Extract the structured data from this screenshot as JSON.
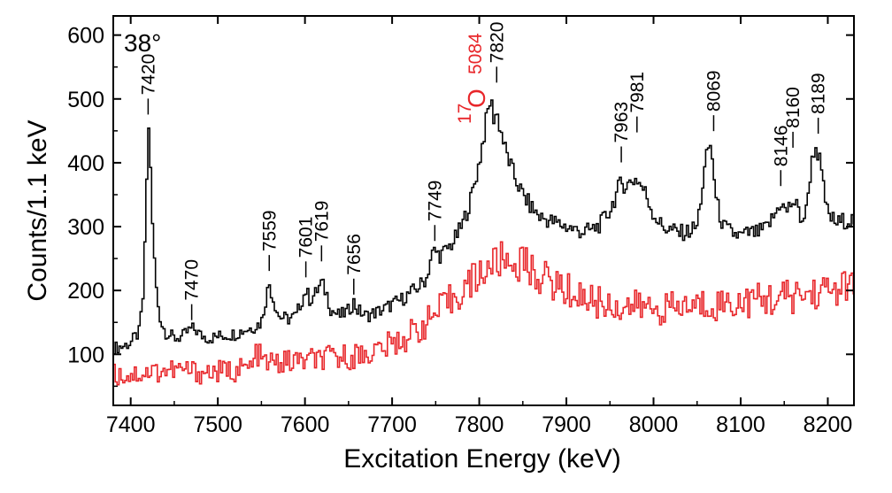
{
  "chart_data": {
    "type": "line",
    "title": "",
    "xlabel": "Excitation Energy (keV)",
    "ylabel": "Counts/1.1 keV",
    "xlim": [
      7380,
      8230
    ],
    "ylim": [
      20,
      630
    ],
    "xticks": [
      7400,
      7500,
      7600,
      7700,
      7800,
      7900,
      8000,
      8100,
      8200
    ],
    "yticks": [
      100,
      200,
      300,
      400,
      500,
      600
    ],
    "grid": false,
    "annotations": {
      "angle": "38°",
      "contaminant_mass": "17",
      "contaminant_element": "O",
      "contaminant_energy": "5084"
    },
    "peak_labels": [
      {
        "text": "7420",
        "x": 7420,
        "y": 470
      },
      {
        "text": "7470",
        "x": 7470,
        "y": 148
      },
      {
        "text": "7559",
        "x": 7559,
        "y": 225
      },
      {
        "text": "7601",
        "x": 7601,
        "y": 215
      },
      {
        "text": "7619",
        "x": 7619,
        "y": 240
      },
      {
        "text": "7656",
        "x": 7656,
        "y": 188
      },
      {
        "text": "7749",
        "x": 7749,
        "y": 272
      },
      {
        "text": "7820",
        "x": 7820,
        "y": 520
      },
      {
        "text": "7963",
        "x": 7963,
        "y": 395
      },
      {
        "text": "7981",
        "x": 7981,
        "y": 442
      },
      {
        "text": "8069",
        "x": 8069,
        "y": 444
      },
      {
        "text": "8146",
        "x": 8146,
        "y": 358
      },
      {
        "text": "8160",
        "x": 8160,
        "y": 418
      },
      {
        "text": "8189",
        "x": 8189,
        "y": 440
      }
    ],
    "series": [
      {
        "color": "#000000",
        "points": [
          [
            7380,
            110
          ],
          [
            7390,
            112
          ],
          [
            7400,
            118
          ],
          [
            7410,
            135
          ],
          [
            7415,
            200
          ],
          [
            7418,
            350
          ],
          [
            7420,
            455
          ],
          [
            7422,
            440
          ],
          [
            7425,
            300
          ],
          [
            7430,
            190
          ],
          [
            7435,
            150
          ],
          [
            7440,
            135
          ],
          [
            7450,
            125
          ],
          [
            7460,
            128
          ],
          [
            7465,
            135
          ],
          [
            7470,
            140
          ],
          [
            7475,
            138
          ],
          [
            7480,
            130
          ],
          [
            7490,
            125
          ],
          [
            7500,
            128
          ],
          [
            7510,
            130
          ],
          [
            7520,
            132
          ],
          [
            7530,
            138
          ],
          [
            7540,
            142
          ],
          [
            7550,
            150
          ],
          [
            7555,
            185
          ],
          [
            7559,
            212
          ],
          [
            7563,
            190
          ],
          [
            7570,
            160
          ],
          [
            7580,
            155
          ],
          [
            7590,
            160
          ],
          [
            7595,
            180
          ],
          [
            7601,
            200
          ],
          [
            7606,
            185
          ],
          [
            7612,
            195
          ],
          [
            7619,
            212
          ],
          [
            7625,
            195
          ],
          [
            7630,
            170
          ],
          [
            7640,
            160
          ],
          [
            7650,
            168
          ],
          [
            7656,
            182
          ],
          [
            7660,
            170
          ],
          [
            7670,
            160
          ],
          [
            7680,
            165
          ],
          [
            7690,
            170
          ],
          [
            7700,
            178
          ],
          [
            7710,
            185
          ],
          [
            7720,
            195
          ],
          [
            7730,
            205
          ],
          [
            7740,
            220
          ],
          [
            7745,
            255
          ],
          [
            7749,
            262
          ],
          [
            7755,
            255
          ],
          [
            7760,
            260
          ],
          [
            7770,
            275
          ],
          [
            7780,
            300
          ],
          [
            7790,
            340
          ],
          [
            7800,
            400
          ],
          [
            7805,
            440
          ],
          [
            7810,
            480
          ],
          [
            7813,
            500
          ],
          [
            7817,
            470
          ],
          [
            7820,
            480
          ],
          [
            7825,
            450
          ],
          [
            7830,
            420
          ],
          [
            7840,
            380
          ],
          [
            7850,
            350
          ],
          [
            7860,
            330
          ],
          [
            7870,
            315
          ],
          [
            7880,
            310
          ],
          [
            7890,
            305
          ],
          [
            7900,
            300
          ],
          [
            7910,
            295
          ],
          [
            7920,
            292
          ],
          [
            7930,
            295
          ],
          [
            7940,
            305
          ],
          [
            7950,
            325
          ],
          [
            7960,
            360
          ],
          [
            7963,
            368
          ],
          [
            7970,
            365
          ],
          [
            7975,
            372
          ],
          [
            7981,
            375
          ],
          [
            7990,
            355
          ],
          [
            8000,
            320
          ],
          [
            8010,
            300
          ],
          [
            8020,
            295
          ],
          [
            8030,
            290
          ],
          [
            8040,
            292
          ],
          [
            8050,
            300
          ],
          [
            8055,
            350
          ],
          [
            8060,
            400
          ],
          [
            8064,
            432
          ],
          [
            8068,
            405
          ],
          [
            8072,
            340
          ],
          [
            8080,
            300
          ],
          [
            8090,
            290
          ],
          [
            8100,
            285
          ],
          [
            8110,
            290
          ],
          [
            8120,
            290
          ],
          [
            8130,
            298
          ],
          [
            8140,
            320
          ],
          [
            8146,
            340
          ],
          [
            8152,
            322
          ],
          [
            8160,
            340
          ],
          [
            8165,
            330
          ],
          [
            8170,
            310
          ],
          [
            8175,
            320
          ],
          [
            8180,
            385
          ],
          [
            8185,
            428
          ],
          [
            8190,
            410
          ],
          [
            8195,
            360
          ],
          [
            8200,
            320
          ],
          [
            8210,
            305
          ],
          [
            8220,
            310
          ],
          [
            8230,
            310
          ]
        ]
      },
      {
        "color": "#e8262a",
        "points": [
          [
            7380,
            68
          ],
          [
            7400,
            68
          ],
          [
            7420,
            72
          ],
          [
            7440,
            75
          ],
          [
            7460,
            75
          ],
          [
            7480,
            72
          ],
          [
            7500,
            72
          ],
          [
            7520,
            75
          ],
          [
            7540,
            80
          ],
          [
            7545,
            105
          ],
          [
            7550,
            90
          ],
          [
            7560,
            85
          ],
          [
            7580,
            88
          ],
          [
            7600,
            90
          ],
          [
            7620,
            92
          ],
          [
            7640,
            95
          ],
          [
            7660,
            98
          ],
          [
            7680,
            105
          ],
          [
            7700,
            115
          ],
          [
            7720,
            130
          ],
          [
            7740,
            150
          ],
          [
            7760,
            175
          ],
          [
            7780,
            200
          ],
          [
            7800,
            225
          ],
          [
            7820,
            245
          ],
          [
            7830,
            248
          ],
          [
            7840,
            240
          ],
          [
            7850,
            245
          ],
          [
            7860,
            230
          ],
          [
            7880,
            215
          ],
          [
            7900,
            200
          ],
          [
            7920,
            190
          ],
          [
            7940,
            180
          ],
          [
            7960,
            175
          ],
          [
            7980,
            175
          ],
          [
            8000,
            172
          ],
          [
            8020,
            172
          ],
          [
            8040,
            175
          ],
          [
            8060,
            178
          ],
          [
            8080,
            180
          ],
          [
            8100,
            182
          ],
          [
            8120,
            185
          ],
          [
            8140,
            188
          ],
          [
            8160,
            190
          ],
          [
            8180,
            195
          ],
          [
            8200,
            200
          ],
          [
            8220,
            205
          ],
          [
            8230,
            205
          ]
        ]
      }
    ]
  }
}
